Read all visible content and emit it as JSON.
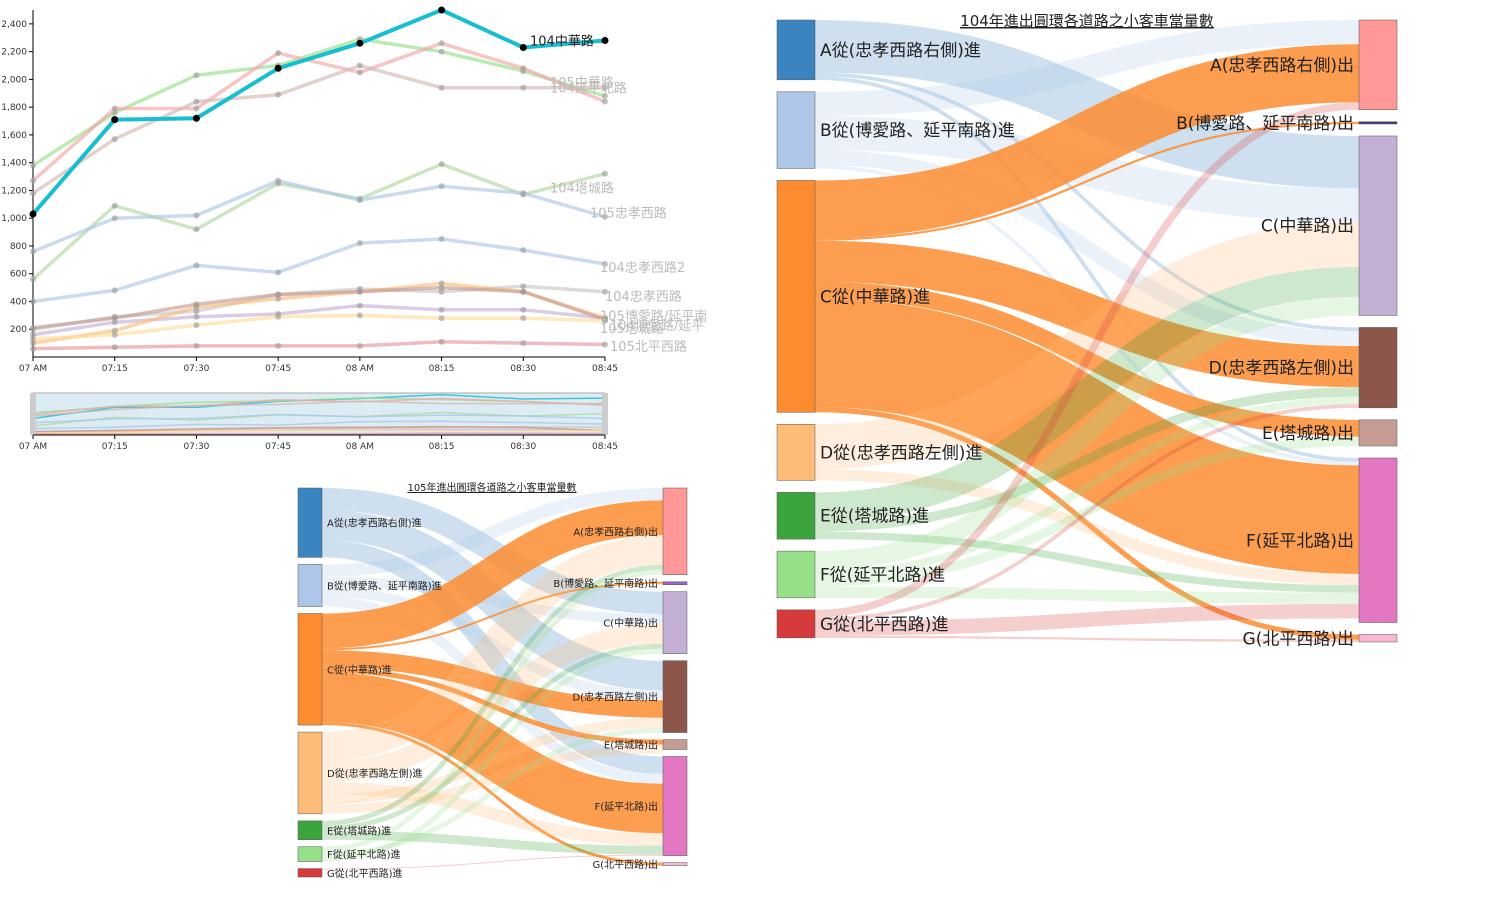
{
  "chart_data": [
    {
      "type": "line",
      "x": [
        "07 AM",
        "07:15",
        "07:30",
        "07:45",
        "08 AM",
        "08:15",
        "08:30",
        "08:45"
      ],
      "y_ticks": [
        200,
        400,
        600,
        800,
        "1,000",
        "1,200",
        "1,400",
        "1,600",
        "1,800",
        "2,000",
        "2,200",
        "2,400"
      ],
      "ylim": [
        0,
        2500
      ],
      "series": [
        {
          "name": "104中華路",
          "color": "#17becf",
          "highlight": true,
          "values": [
            1030,
            1710,
            1720,
            2080,
            2260,
            2500,
            2230,
            2280
          ]
        },
        {
          "name": "105中華路",
          "color": "#98df8a",
          "values": [
            1380,
            1760,
            2030,
            2100,
            2290,
            2200,
            2060,
            1880
          ]
        },
        {
          "name": "105延平北路",
          "color": "#f4a5a5",
          "values": [
            1270,
            1790,
            1790,
            2190,
            2050,
            2260,
            2080,
            1840
          ]
        },
        {
          "name": "104延平北路",
          "color": "#d4b8b2",
          "values": [
            1180,
            1570,
            1840,
            1890,
            2100,
            1940,
            1940,
            1940
          ]
        },
        {
          "name": "104塔城路",
          "color": "#b2d8a0",
          "values": [
            560,
            1090,
            920,
            1250,
            1140,
            1390,
            1170,
            1320
          ]
        },
        {
          "name": "105忠孝西路",
          "color": "#aec7e8",
          "values": [
            760,
            1000,
            1020,
            1270,
            1130,
            1230,
            1180,
            1010
          ]
        },
        {
          "name": "104忠孝西路2",
          "color": "#aec7e8",
          "values": [
            400,
            480,
            660,
            610,
            820,
            850,
            770,
            670
          ]
        },
        {
          "name": "104忠孝西路",
          "color": "#c7c7c7",
          "values": [
            200,
            290,
            330,
            450,
            490,
            470,
            510,
            470
          ]
        },
        {
          "name": "105博愛路/延平南路",
          "color": "#c5b0d5",
          "values": [
            160,
            250,
            290,
            310,
            370,
            340,
            340,
            280
          ]
        },
        {
          "name": "104博愛路/延平南路",
          "color": "#ffbb78",
          "values": [
            100,
            190,
            360,
            420,
            470,
            530,
            470,
            280
          ]
        },
        {
          "name": "105塔城路",
          "color": "#c49c94",
          "values": [
            210,
            280,
            380,
            450,
            470,
            500,
            470,
            270
          ]
        },
        {
          "name": "104塔城路2",
          "color": "#ffdd99",
          "values": [
            130,
            160,
            230,
            290,
            300,
            280,
            280,
            260
          ]
        },
        {
          "name": "105北平西路",
          "color": "#e7969c",
          "values": [
            60,
            70,
            80,
            80,
            80,
            110,
            100,
            90
          ]
        }
      ],
      "label_texts": [
        "104中華路",
        "105中華路",
        "104延平北路",
        "104塔城路",
        "105忠孝西路",
        "104忠孝西路2",
        "104忠孝西路",
        "105博愛路/延平南",
        "104博愛路/延平",
        "105塔城路",
        "105北平西路"
      ],
      "brush_x_ticks": [
        "07 AM",
        "07:15",
        "07:30",
        "07:45",
        "08 AM",
        "08:15",
        "08:30",
        "08:45"
      ]
    },
    {
      "type": "sankey",
      "title": "104年進出圓環各道路之小客車當量數",
      "sources": [
        {
          "id": "A_in",
          "label": "A從(忠孝西路右側)進",
          "color": "#3a84bf",
          "value": 160
        },
        {
          "id": "B_in",
          "label": "B從(博愛路、延平南路)進",
          "color": "#aec7e8",
          "value": 205
        },
        {
          "id": "C_in",
          "label": "C從(中華路)進",
          "color": "#fd8c30",
          "value": 620
        },
        {
          "id": "D_in",
          "label": "D從(忠孝西路左側)進",
          "color": "#ffbb78",
          "value": 150
        },
        {
          "id": "E_in",
          "label": "E從(塔城路)進",
          "color": "#3ca43c",
          "value": 125
        },
        {
          "id": "F_in",
          "label": "F從(延平北路)進",
          "color": "#98df8a",
          "value": 125
        },
        {
          "id": "G_in",
          "label": "G從(北平西路)進",
          "color": "#d63b3b",
          "value": 75
        }
      ],
      "targets": [
        {
          "id": "A_out",
          "label": "A(忠孝西路右側)出",
          "color": "#ff9896",
          "value": 240
        },
        {
          "id": "B_out",
          "label": "B(博愛路、延平南路)出",
          "color": "#393b79",
          "value": 6
        },
        {
          "id": "C_out",
          "label": "C(中華路)出",
          "color": "#c5b0d5",
          "value": 480
        },
        {
          "id": "D_out",
          "label": "D(忠孝西路左側)出",
          "color": "#8c564b",
          "value": 215
        },
        {
          "id": "E_out",
          "label": "E(塔城路)出",
          "color": "#c49c94",
          "value": 70
        },
        {
          "id": "F_out",
          "label": "F(延平北路)出",
          "color": "#e377c2",
          "value": 440
        },
        {
          "id": "G_out",
          "label": "G(北平西路)出",
          "color": "#f7b6d2",
          "value": 20
        }
      ],
      "links": [
        {
          "source": "A_in",
          "target": "C_out",
          "value": 140
        },
        {
          "source": "A_in",
          "target": "D_out",
          "value": 10
        },
        {
          "source": "A_in",
          "target": "F_out",
          "value": 10
        },
        {
          "source": "B_in",
          "target": "A_out",
          "value": 65
        },
        {
          "source": "B_in",
          "target": "C_out",
          "value": 90
        },
        {
          "source": "B_in",
          "target": "D_out",
          "value": 40
        },
        {
          "source": "B_in",
          "target": "F_out",
          "value": 10
        },
        {
          "source": "C_in",
          "target": "A_out",
          "value": 155
        },
        {
          "source": "C_in",
          "target": "B_out",
          "value": 6
        },
        {
          "source": "C_in",
          "target": "D_out",
          "value": 110
        },
        {
          "source": "C_in",
          "target": "E_out",
          "value": 45
        },
        {
          "source": "C_in",
          "target": "F_out",
          "value": 290
        },
        {
          "source": "C_in",
          "target": "G_out",
          "value": 14
        },
        {
          "source": "D_in",
          "target": "C_out",
          "value": 120
        },
        {
          "source": "D_in",
          "target": "F_out",
          "value": 30
        },
        {
          "source": "E_in",
          "target": "C_out",
          "value": 80
        },
        {
          "source": "E_in",
          "target": "D_out",
          "value": 25
        },
        {
          "source": "E_in",
          "target": "F_out",
          "value": 20
        },
        {
          "source": "F_in",
          "target": "C_out",
          "value": 50
        },
        {
          "source": "F_in",
          "target": "D_out",
          "value": 20
        },
        {
          "source": "F_in",
          "target": "E_out",
          "value": 25
        },
        {
          "source": "F_in",
          "target": "F_out",
          "value": 30
        },
        {
          "source": "G_in",
          "target": "A_out",
          "value": 20
        },
        {
          "source": "G_in",
          "target": "D_out",
          "value": 10
        },
        {
          "source": "G_in",
          "target": "F_out",
          "value": 39
        },
        {
          "source": "G_in",
          "target": "G_out",
          "value": 6
        }
      ]
    },
    {
      "type": "sankey",
      "title": "105年進出圓環各道路之小客車當量數",
      "sources": [
        {
          "id": "A_in",
          "label": "A從(忠孝西路右側)進",
          "color": "#3a84bf",
          "value": 140
        },
        {
          "id": "B_in",
          "label": "B從(博愛路、延平南路)進",
          "color": "#aec7e8",
          "value": 85
        },
        {
          "id": "C_in",
          "label": "C從(中華路)進",
          "color": "#fd8c30",
          "value": 225
        },
        {
          "id": "D_in",
          "label": "D從(忠孝西路左側)進",
          "color": "#ffbb78",
          "value": 165
        },
        {
          "id": "E_in",
          "label": "E從(塔城路)進",
          "color": "#3ca43c",
          "value": 38
        },
        {
          "id": "F_in",
          "label": "F從(延平北路)進",
          "color": "#98df8a",
          "value": 30
        },
        {
          "id": "G_in",
          "label": "G從(北平西路)進",
          "color": "#d63b3b",
          "value": 17
        }
      ],
      "targets": [
        {
          "id": "A_out",
          "label": "A(忠孝西路右側)出",
          "color": "#ff9896",
          "value": 175
        },
        {
          "id": "B_out",
          "label": "B(博愛路、延平南路)出",
          "color": "#9467bd",
          "value": 6
        },
        {
          "id": "C_out",
          "label": "C(中華路)出",
          "color": "#c5b0d5",
          "value": 125
        },
        {
          "id": "D_out",
          "label": "D(忠孝西路左側)出",
          "color": "#8c564b",
          "value": 145
        },
        {
          "id": "E_out",
          "label": "E(塔城路)出",
          "color": "#c49c94",
          "value": 20
        },
        {
          "id": "F_out",
          "label": "F(延平北路)出",
          "color": "#e377c2",
          "value": 200
        },
        {
          "id": "G_out",
          "label": "G(北平西路)出",
          "color": "#f7b6d2",
          "value": 6
        }
      ],
      "links": [
        {
          "source": "A_in",
          "target": "C_out",
          "value": 45
        },
        {
          "source": "A_in",
          "target": "D_out",
          "value": 60
        },
        {
          "source": "A_in",
          "target": "F_out",
          "value": 35
        },
        {
          "source": "B_in",
          "target": "A_out",
          "value": 25
        },
        {
          "source": "B_in",
          "target": "C_out",
          "value": 20
        },
        {
          "source": "B_in",
          "target": "D_out",
          "value": 20
        },
        {
          "source": "B_in",
          "target": "F_out",
          "value": 20
        },
        {
          "source": "C_in",
          "target": "A_out",
          "value": 70
        },
        {
          "source": "C_in",
          "target": "B_out",
          "value": 4
        },
        {
          "source": "C_in",
          "target": "D_out",
          "value": 35
        },
        {
          "source": "C_in",
          "target": "E_out",
          "value": 10
        },
        {
          "source": "C_in",
          "target": "F_out",
          "value": 100
        },
        {
          "source": "C_in",
          "target": "G_out",
          "value": 6
        },
        {
          "source": "D_in",
          "target": "A_out",
          "value": 60
        },
        {
          "source": "D_in",
          "target": "C_out",
          "value": 40
        },
        {
          "source": "D_in",
          "target": "F_out",
          "value": 25
        },
        {
          "source": "D_in",
          "target": "D_out",
          "value": 20
        },
        {
          "source": "D_in",
          "target": "B_out",
          "value": 2
        },
        {
          "source": "D_in",
          "target": "E_out",
          "value": 18
        },
        {
          "source": "E_in",
          "target": "A_out",
          "value": 10
        },
        {
          "source": "E_in",
          "target": "C_out",
          "value": 10
        },
        {
          "source": "E_in",
          "target": "F_out",
          "value": 18
        },
        {
          "source": "F_in",
          "target": "A_out",
          "value": 10
        },
        {
          "source": "F_in",
          "target": "D_out",
          "value": 10
        },
        {
          "source": "F_in",
          "target": "C_out",
          "value": 10
        },
        {
          "source": "G_in",
          "target": "D_out",
          "value": 0
        },
        {
          "source": "G_in",
          "target": "F_out",
          "value": 2
        },
        {
          "source": "G_in",
          "target": "C_out",
          "value": 0
        },
        {
          "source": "G_in",
          "target": "A_out",
          "value": 0
        }
      ]
    }
  ]
}
